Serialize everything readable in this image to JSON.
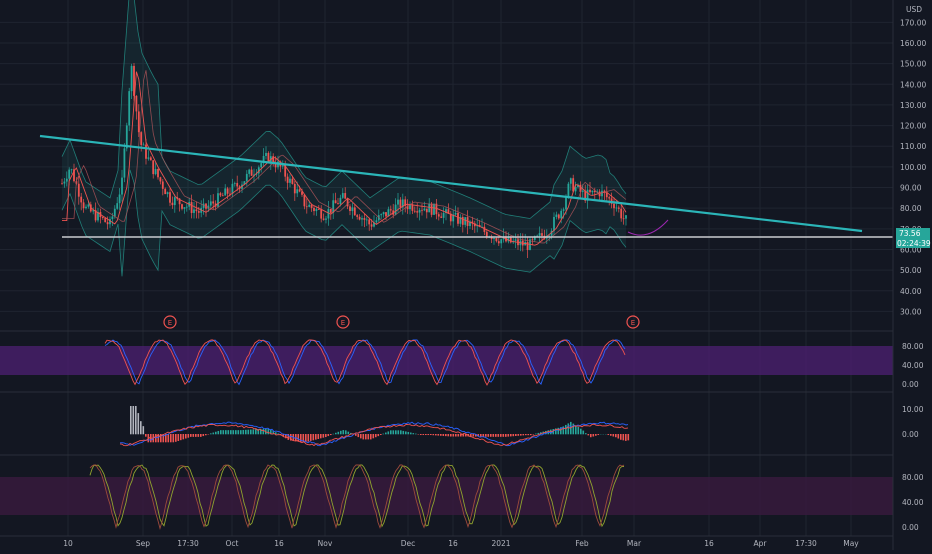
{
  "price_axis": {
    "currency": "USD",
    "ticks": [
      "170.00",
      "160.00",
      "150.00",
      "140.00",
      "130.00",
      "120.00",
      "110.00",
      "100.00",
      "90.00",
      "80.00",
      "70.00",
      "60.00",
      "50.00",
      "40.00",
      "30.00"
    ],
    "last_price": "73.56",
    "countdown": "02:24:39",
    "last_price_color": "#26a69a"
  },
  "time_axis": {
    "ticks": [
      "10",
      "Sep",
      "17:30",
      "Oct",
      "16",
      "Nov",
      "Dec",
      "16",
      "2021",
      "Feb",
      "Mar",
      "16",
      "Apr",
      "17:30",
      "May"
    ]
  },
  "earnings_markers": [
    "E",
    "E",
    "E"
  ],
  "stoch_rsi": {
    "ticks": [
      "80.00",
      "40.00",
      "0.00"
    ],
    "band_color": "#4a1f6e"
  },
  "macd": {
    "ticks": [
      "10.00",
      "0.00"
    ]
  },
  "lower_osc": {
    "ticks": [
      "80.00",
      "40.00",
      "0.00"
    ],
    "band_color": "#3a1a3e"
  },
  "colors": {
    "background": "#131722",
    "up": "#26a69a",
    "down": "#ef5350",
    "trendline": "#2bb5b8",
    "support": "#c9cbd0",
    "grid": "#1f2430"
  },
  "chart_data": {
    "type": "candlestick",
    "series": [
      {
        "name": "",
        "kind": "ohlc_close",
        "x": [
          "10",
          "Sep",
          "17:30",
          "Oct",
          "16",
          "Nov",
          "Dec",
          "16",
          "2021",
          "Feb"
        ],
        "values": [
          95,
          150,
          85,
          95,
          107,
          80,
          82,
          72,
          65,
          88
        ]
      }
    ],
    "annotations": {
      "trendline": {
        "from": 120,
        "to": 75
      },
      "support": 71
    },
    "ylim": [
      25,
      175
    ],
    "grid": true
  }
}
